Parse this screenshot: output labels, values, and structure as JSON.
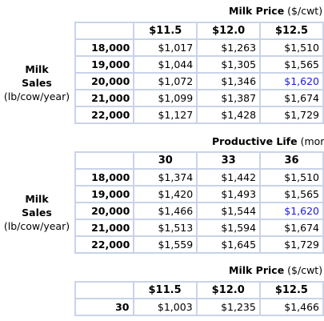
{
  "table1": {
    "caption_bold": "Milk Price",
    "caption_unit": "($/cwt)",
    "row_label_line1": "Milk",
    "row_label_line2": "Sales",
    "row_label_line3": "(lb/cow/year)",
    "col_headers": [
      "$11.5",
      "$12.0",
      "$12.5"
    ],
    "rows": [
      {
        "label": "18,000",
        "values": [
          "$1,017",
          "$1,263",
          "$1,510"
        ]
      },
      {
        "label": "19,000",
        "values": [
          "$1,044",
          "$1,305",
          "$1,565"
        ]
      },
      {
        "label": "20,000",
        "values": [
          "$1,072",
          "$1,346",
          "$1,620"
        ]
      },
      {
        "label": "21,000",
        "values": [
          "$1,099",
          "$1,387",
          "$1,674"
        ]
      },
      {
        "label": "22,000",
        "values": [
          "$1,127",
          "$1,428",
          "$1,729"
        ]
      }
    ]
  },
  "table2": {
    "caption_bold": "Productive Life",
    "caption_unit": "(mont",
    "row_label_line1": "Milk",
    "row_label_line2": "Sales",
    "row_label_line3": "(lb/cow/year)",
    "col_headers": [
      "30",
      "33",
      "36"
    ],
    "rows": [
      {
        "label": "18,000",
        "values": [
          "$1,374",
          "$1,442",
          "$1,510"
        ]
      },
      {
        "label": "19,000",
        "values": [
          "$1,420",
          "$1,493",
          "$1,565"
        ]
      },
      {
        "label": "20,000",
        "values": [
          "$1,466",
          "$1,544",
          "$1,620"
        ]
      },
      {
        "label": "21,000",
        "values": [
          "$1,513",
          "$1,594",
          "$1,674"
        ]
      },
      {
        "label": "22,000",
        "values": [
          "$1,559",
          "$1,645",
          "$1,729"
        ]
      }
    ]
  },
  "table3": {
    "caption_bold": "Milk Price",
    "caption_unit": "($/cwt)",
    "col_headers": [
      "$11.5",
      "$12.0",
      "$12.5"
    ],
    "rows": [
      {
        "label": "30",
        "values": [
          "$1,003",
          "$1,235",
          "$1,466"
        ]
      }
    ]
  },
  "colors": {
    "highlight": "#1a1adf",
    "grid": "#c9d3e8"
  }
}
